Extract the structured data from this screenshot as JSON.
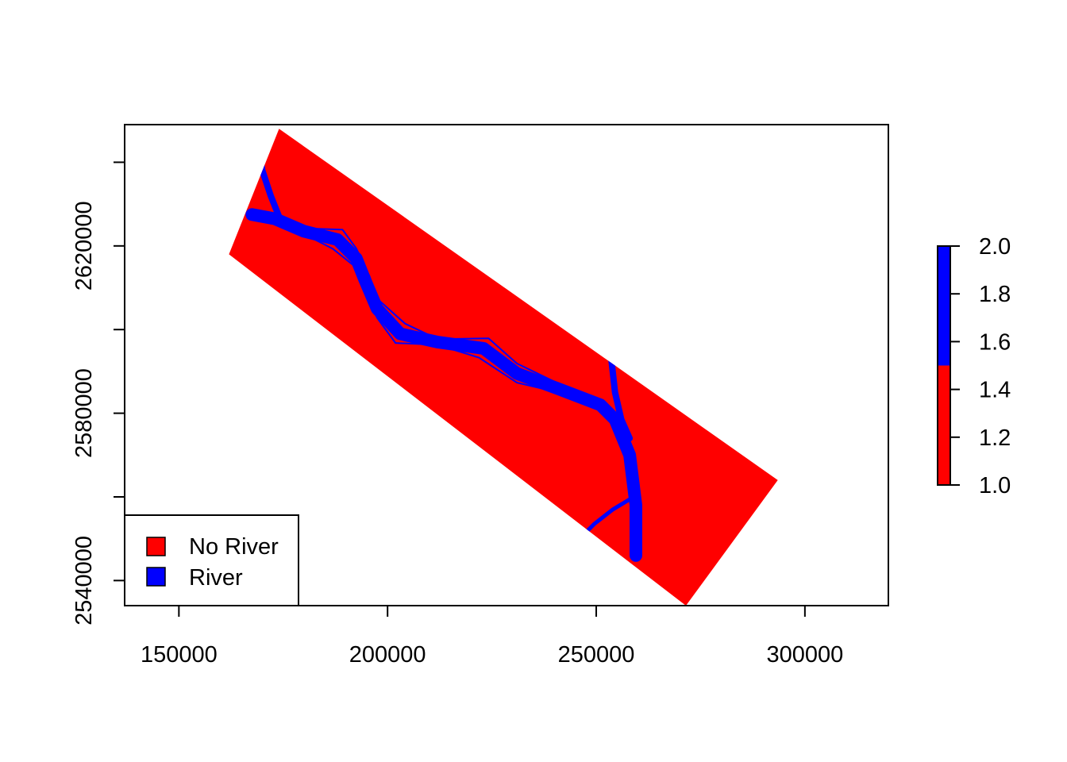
{
  "chart_data": {
    "type": "heatmap",
    "title": "",
    "xlabel": "",
    "ylabel": "",
    "xlim": [
      137000,
      320000
    ],
    "ylim": [
      2534000,
      2649000
    ],
    "x_ticks": [
      150000,
      200000,
      250000,
      300000
    ],
    "x_tick_labels": [
      "150000",
      "200000",
      "250000",
      "300000"
    ],
    "y_ticks": [
      2540000,
      2560000,
      2580000,
      2600000,
      2620000,
      2640000
    ],
    "y_labeled_ticks": [
      2540000,
      2580000,
      2620000
    ],
    "y_tick_labels": [
      "2540000",
      "2580000",
      "2620000"
    ],
    "raster_extent_corners": [
      [
        174000,
        2648000
      ],
      [
        293500,
        2564000
      ],
      [
        271500,
        2534000
      ],
      [
        162000,
        2618000
      ]
    ],
    "classes": [
      {
        "value": 1,
        "label": "No River",
        "color": "#ff0000"
      },
      {
        "value": 2,
        "label": "River",
        "color": "#0000ff"
      }
    ],
    "legend": {
      "position": "bottom-left",
      "entries": [
        "No River",
        "River"
      ]
    },
    "colorbar": {
      "range": [
        1.0,
        2.0
      ],
      "break": 1.5,
      "ticks": [
        1.0,
        1.2,
        1.4,
        1.6,
        1.8,
        2.0
      ],
      "tick_labels": [
        "1.0",
        "1.2",
        "1.4",
        "1.6",
        "1.8",
        "2.0"
      ],
      "colors": [
        "#ff0000",
        "#0000ff"
      ]
    },
    "river_path": [
      [
        167500,
        2627500
      ],
      [
        173000,
        2626500
      ],
      [
        180000,
        2623500
      ],
      [
        188000,
        2621500
      ],
      [
        192500,
        2617000
      ],
      [
        194500,
        2612000
      ],
      [
        197500,
        2605000
      ],
      [
        203000,
        2599000
      ],
      [
        212000,
        2597000
      ],
      [
        223000,
        2595500
      ],
      [
        231000,
        2589500
      ],
      [
        240500,
        2586000
      ],
      [
        251000,
        2582000
      ],
      [
        254500,
        2578500
      ],
      [
        258000,
        2570000
      ],
      [
        259500,
        2558000
      ],
      [
        259500,
        2546000
      ]
    ],
    "tributary_path": [
      [
        253500,
        2603000
      ],
      [
        253500,
        2594000
      ],
      [
        254500,
        2585000
      ],
      [
        256000,
        2578500
      ],
      [
        258000,
        2574000
      ]
    ],
    "north_fork_path": [
      [
        169000,
        2644000
      ],
      [
        170000,
        2638000
      ],
      [
        172000,
        2632000
      ],
      [
        174000,
        2627000
      ]
    ],
    "grid": false
  }
}
